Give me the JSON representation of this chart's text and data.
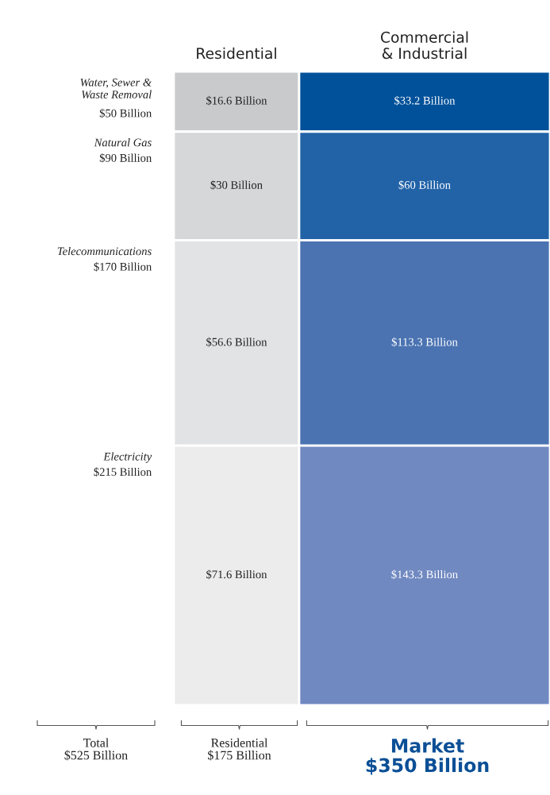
{
  "chart_data": {
    "type": "other",
    "categories": [
      "Water, Sewer &\nWaste Removal",
      "Natural Gas",
      "Telecommunications",
      "Electricity"
    ],
    "totals": [
      "$50 Billion",
      "$90 Billion",
      "$170 Billion",
      "$215 Billion"
    ],
    "series": [
      {
        "name": "Residential",
        "values": [
          16.6,
          30,
          56.6,
          71.6
        ],
        "colors": [
          "#c9cacc",
          "#d6d7d9",
          "#e2e3e4",
          "#ececec"
        ],
        "value_labels": [
          "$16.6 Billion",
          "$30 Billion",
          "$56.6 Billion",
          "$71.6 Billion"
        ]
      },
      {
        "name": "Commercial\n& Industrial",
        "values": [
          33.2,
          60,
          113.3,
          143.3
        ],
        "colors": [
          "#00519a",
          "#2263a8",
          "#4b73b2",
          "#7189c1"
        ],
        "value_labels": [
          "$33.2 Billion",
          "$60 Billion",
          "$113.3 Billion",
          "$143.3 Billion"
        ]
      }
    ],
    "annotations": [
      "Total\n$525 Billion",
      "Residential\n$175 Billion",
      "Market\n$350 Billion"
    ]
  }
}
